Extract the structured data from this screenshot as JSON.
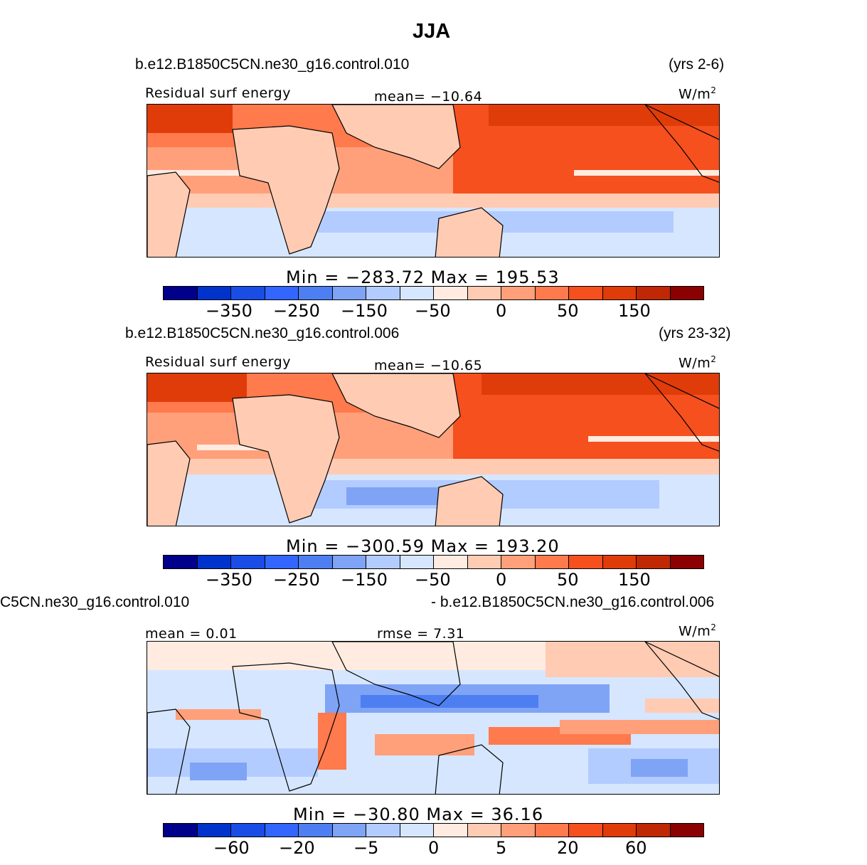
{
  "title": "JJA",
  "colors": [
    "#00008b",
    "#0033cc",
    "#1a4de6",
    "#3366ff",
    "#4d7ff2",
    "#7fa3f5",
    "#b3ccff",
    "#d6e6ff",
    "#ffebe0",
    "#ffcbb3",
    "#ffa07a",
    "#ff7a4d",
    "#f5501e",
    "#e03c0a",
    "#c02805",
    "#8b0000"
  ],
  "panel1": {
    "case": "b.e12.B1850C5CN.ne30_g16.control.010",
    "years": "(yrs 2-6)",
    "variable": "Residual surf energy",
    "mean": "mean= −10.64",
    "units": "W/m",
    "units_sup": "2",
    "minmax": "Min = −283.72 Max = 195.53",
    "ticks": [
      "−350",
      "−250",
      "−150",
      "−50",
      "0",
      "50",
      "150"
    ]
  },
  "panel2": {
    "case": "b.e12.B1850C5CN.ne30_g16.control.006",
    "years": "(yrs 23-32)",
    "variable": "Residual surf energy",
    "mean": "mean= −10.65",
    "units": "W/m",
    "units_sup": "2",
    "minmax": "Min = −300.59 Max = 193.20",
    "ticks": [
      "−350",
      "−250",
      "−150",
      "−50",
      "0",
      "50",
      "150"
    ]
  },
  "panel3": {
    "case_left": "C5CN.ne30_g16.control.010",
    "case_right": "- b.e12.B1850C5CN.ne30_g16.control.006",
    "mean": "mean =    0.01",
    "rmse": "rmse =    7.31",
    "units": "W/m",
    "units_sup": "2",
    "minmax": "Min = −30.80 Max =  36.16",
    "ticks": [
      "−60",
      "−20",
      "−5",
      "0",
      "5",
      "20",
      "60"
    ]
  }
}
